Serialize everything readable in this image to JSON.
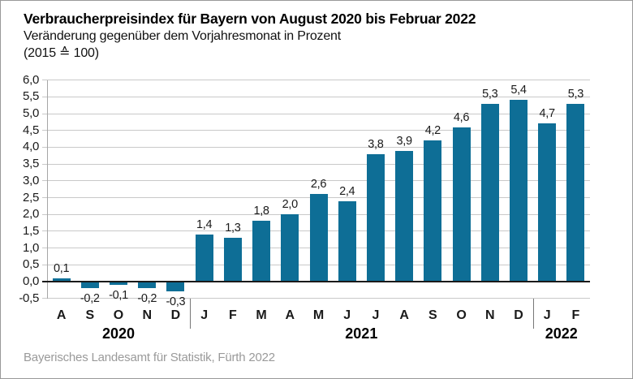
{
  "header": {
    "title": "Verbraucherpreisindex für Bayern von August 2020 bis Februar 2022",
    "subtitle": "Veränderung gegenüber dem Vorjahresmonat in Prozent",
    "basis": "(2015 ≙ 100)"
  },
  "footer": {
    "source": "Bayerisches Landesamt für Statistik, Fürth 2022"
  },
  "chart_data": {
    "type": "bar",
    "title": "Verbraucherpreisindex für Bayern von August 2020 bis Februar 2022",
    "subtitle": "Veränderung gegenüber dem Vorjahresmonat in Prozent",
    "index_basis": "(2015 ≙ 100)",
    "categories": [
      "A",
      "S",
      "O",
      "N",
      "D",
      "J",
      "F",
      "M",
      "A",
      "M",
      "J",
      "J",
      "A",
      "S",
      "O",
      "N",
      "D",
      "J",
      "F"
    ],
    "values": [
      0.1,
      -0.2,
      -0.1,
      -0.2,
      -0.3,
      1.4,
      1.3,
      1.8,
      2.0,
      2.6,
      2.4,
      3.8,
      3.9,
      4.2,
      4.6,
      5.3,
      5.4,
      4.7,
      5.3
    ],
    "value_labels": [
      "0,1",
      "-0,2",
      "-0,1",
      "-0,2",
      "-0,3",
      "1,4",
      "1,3",
      "1,8",
      "2,0",
      "2,6",
      "2,4",
      "3,8",
      "3,9",
      "4,2",
      "4,6",
      "5,3",
      "5,4",
      "4,7",
      "5,3"
    ],
    "years": [
      {
        "label": "2020",
        "start": 0,
        "end": 4
      },
      {
        "label": "2021",
        "start": 5,
        "end": 16
      },
      {
        "label": "2022",
        "start": 17,
        "end": 18
      }
    ],
    "y_ticks": [
      {
        "value": 6.0,
        "label": "6,0"
      },
      {
        "value": 5.5,
        "label": "5,5"
      },
      {
        "value": 5.0,
        "label": "5,0"
      },
      {
        "value": 4.5,
        "label": "4,5"
      },
      {
        "value": 4.0,
        "label": "4,0"
      },
      {
        "value": 3.5,
        "label": "3,5"
      },
      {
        "value": 3.0,
        "label": "3,0"
      },
      {
        "value": 2.5,
        "label": "2,5"
      },
      {
        "value": 2.0,
        "label": "2,0"
      },
      {
        "value": 1.5,
        "label": "1,5"
      },
      {
        "value": 1.0,
        "label": "1,0"
      },
      {
        "value": 0.5,
        "label": "0,5"
      },
      {
        "value": 0.0,
        "label": "0,0"
      },
      {
        "value": -0.5,
        "label": "-0,5"
      }
    ],
    "ylim": [
      -0.5,
      6.0
    ],
    "xlabel": "",
    "ylabel": "Prozent",
    "grid": true,
    "legend": "none",
    "colors": {
      "bar": "#0e6e96",
      "gridline": "#c9c9c9",
      "baseline": "#1a1a1a",
      "axis": "#a6a6a6",
      "divider": "#777777",
      "source_text": "#9a9a9a",
      "frame_border": "#999999"
    }
  }
}
